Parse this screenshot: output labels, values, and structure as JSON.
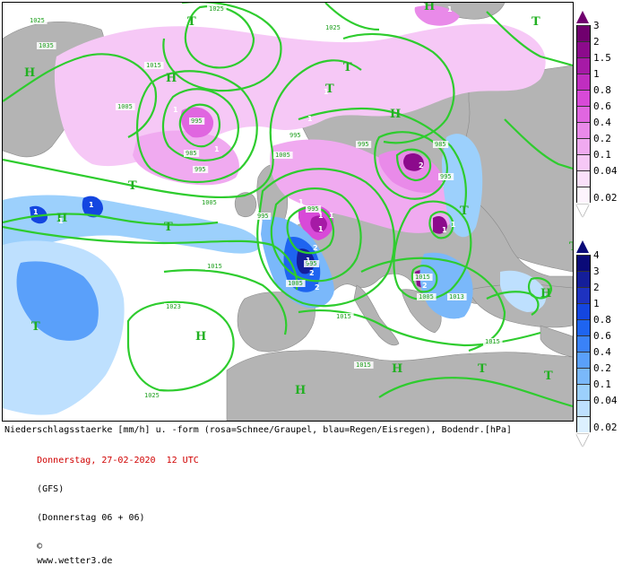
{
  "map": {
    "isobar_color": "#2ecc2e",
    "land_color": "#b4b4b4",
    "sea_color": "#ffffff",
    "isobar_labels": [
      "1025",
      "1025",
      "1035",
      "1015",
      "1005",
      "995",
      "985",
      "995",
      "995",
      "1005",
      "995",
      "995",
      "985",
      "995",
      "1005",
      "995",
      "1015",
      "1005",
      "995",
      "1015",
      "1023",
      "1015",
      "1005",
      "1015",
      "1015",
      "1013",
      "1025",
      "1025"
    ],
    "pressure_centers": [
      {
        "label": "H"
      },
      {
        "label": "T"
      },
      {
        "label": "T"
      },
      {
        "label": "H"
      },
      {
        "label": "T"
      },
      {
        "label": "H"
      },
      {
        "label": "T"
      },
      {
        "label": "T"
      },
      {
        "label": "H"
      },
      {
        "label": "T"
      },
      {
        "label": "H"
      },
      {
        "label": "H"
      },
      {
        "label": "T"
      },
      {
        "label": "T"
      },
      {
        "label": "T"
      },
      {
        "label": "H"
      },
      {
        "label": "H"
      },
      {
        "label": "T"
      },
      {
        "label": "H"
      },
      {
        "label": "T"
      }
    ],
    "cell_labels": [
      "1",
      "1",
      "1",
      "1",
      "1",
      "1",
      "1",
      "1",
      "1",
      "2",
      "1",
      "2",
      "2",
      "1",
      "2",
      "1",
      "1",
      "2",
      "1",
      "1",
      "1"
    ]
  },
  "legend_snow": {
    "title": "rosa=Schnee/Graupel",
    "levels": [
      "3",
      "2",
      "1.5",
      "1",
      "0.8",
      "0.6",
      "0.4",
      "0.2",
      "0.1",
      "0.04",
      "0.02"
    ],
    "colors": [
      "#70006e",
      "#8c0a8c",
      "#a61aa6",
      "#c02ec0",
      "#d84ad8",
      "#e066e0",
      "#e98ae9",
      "#f0aaf0",
      "#f6c8f6",
      "#fae0fa",
      "#fdf4fd"
    ]
  },
  "legend_rain": {
    "title": "blau=Regen/Eisregen",
    "levels": [
      "4",
      "3",
      "2",
      "1",
      "0.8",
      "0.6",
      "0.4",
      "0.2",
      "0.1",
      "0.04",
      "0.02"
    ],
    "colors": [
      "#0a0a78",
      "#141e9a",
      "#1e32c0",
      "#1446e0",
      "#1e64f0",
      "#3a82f8",
      "#5aa0fa",
      "#7ab8fa",
      "#9cd0fc",
      "#bee0fe",
      "#dcf0ff"
    ]
  },
  "footer": {
    "line1": "Niederschlagsstaerke [mm/h] u. -form (rosa=Schnee/Graupel, blau=Regen/Eisregen), Bodendr.[hPa]",
    "date": "Donnerstag, 27-02-2020  12 UTC",
    "model": "(GFS)",
    "run": "(Donnerstag 06 + 06)",
    "copyright_symbol": "©",
    "website": "www.wetter3.de"
  }
}
